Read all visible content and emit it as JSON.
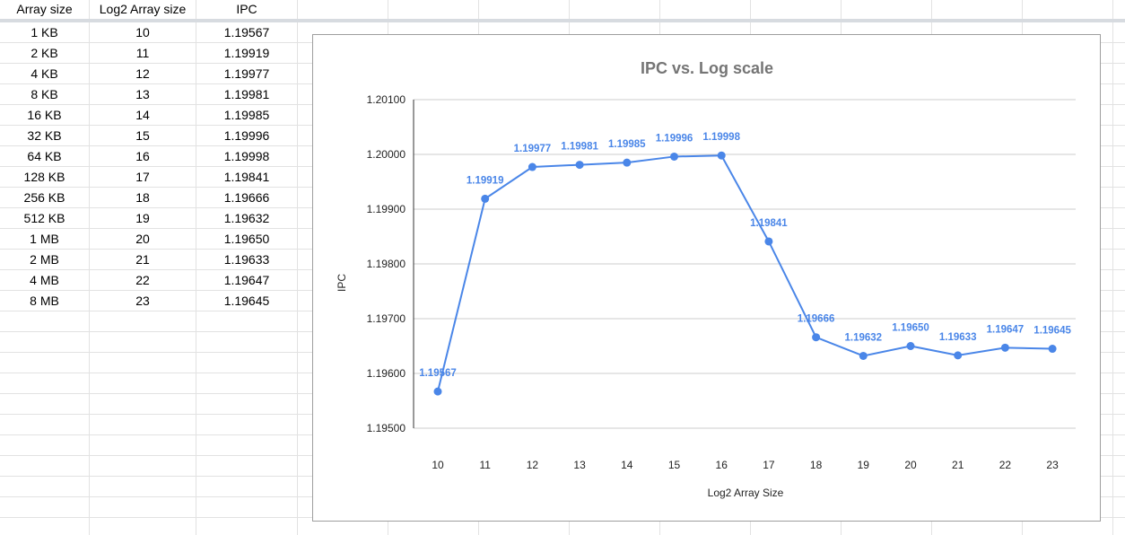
{
  "sheet": {
    "headers": [
      "Array size",
      "Log2 Array size",
      "IPC"
    ],
    "rows": [
      [
        "1 KB",
        "10",
        "1.19567"
      ],
      [
        "2 KB",
        "11",
        "1.19919"
      ],
      [
        "4 KB",
        "12",
        "1.19977"
      ],
      [
        "8 KB",
        "13",
        "1.19981"
      ],
      [
        "16 KB",
        "14",
        "1.19985"
      ],
      [
        "32 KB",
        "15",
        "1.19996"
      ],
      [
        "64 KB",
        "16",
        "1.19998"
      ],
      [
        "128 KB",
        "17",
        "1.19841"
      ],
      [
        "256 KB",
        "18",
        "1.19666"
      ],
      [
        "512 KB",
        "19",
        "1.19632"
      ],
      [
        "1 MB",
        "20",
        "1.19650"
      ],
      [
        "2 MB",
        "21",
        "1.19633"
      ],
      [
        "4 MB",
        "22",
        "1.19647"
      ],
      [
        "8 MB",
        "23",
        "1.19645"
      ]
    ]
  },
  "chart_data": {
    "type": "line",
    "title": "IPC vs. Log scale",
    "xlabel": "Log2 Array Size",
    "ylabel": "IPC",
    "x": [
      10,
      11,
      12,
      13,
      14,
      15,
      16,
      17,
      18,
      19,
      20,
      21,
      22,
      23
    ],
    "series": [
      {
        "values": [
          1.19567,
          1.19919,
          1.19977,
          1.19981,
          1.19985,
          1.19996,
          1.19998,
          1.19841,
          1.19666,
          1.19632,
          1.1965,
          1.19633,
          1.19647,
          1.19645
        ],
        "labels": [
          "1.19567",
          "1.19919",
          "1.19977",
          "1.19981",
          "1.19985",
          "1.19996",
          "1.19998",
          "1.19841",
          "1.19666",
          "1.19632",
          "1.19650",
          "1.19633",
          "1.19647",
          "1.19645"
        ],
        "color": "#4a86e8"
      }
    ],
    "yticks": [
      "1.19500",
      "1.19600",
      "1.19700",
      "1.19800",
      "1.19900",
      "1.20000",
      "1.20100"
    ],
    "ylim": [
      1.195,
      1.201
    ],
    "grid": true,
    "colors": {
      "title": "#757575",
      "axis_text": "#222222",
      "gridline": "#cccccc",
      "line": "#4a86e8"
    }
  }
}
